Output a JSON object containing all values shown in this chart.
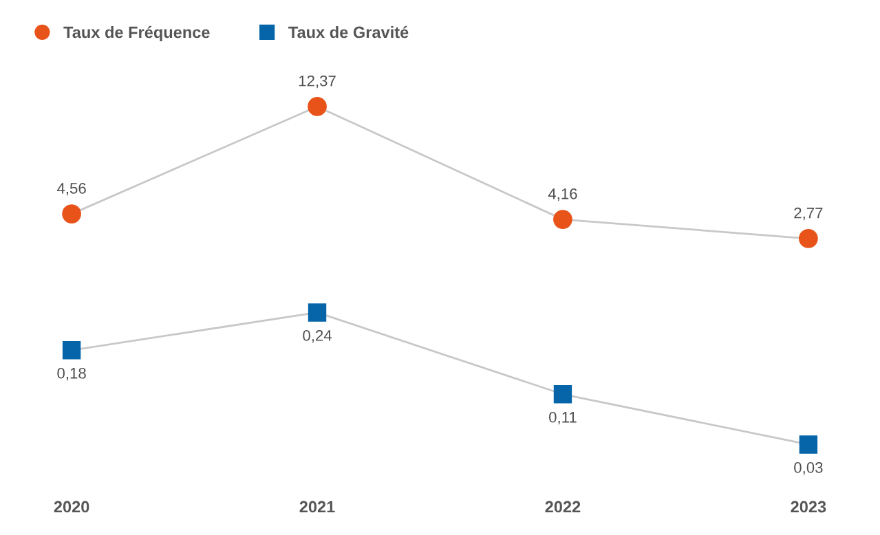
{
  "chart_data": [
    {
      "type": "line",
      "categories": [
        "2020",
        "2021",
        "2022",
        "2023"
      ],
      "series": [
        {
          "name": "Taux de Fréquence",
          "color": "#e8531a",
          "marker": "circle",
          "values": [
            4.56,
            12.37,
            4.16,
            2.77
          ],
          "value_labels": [
            "4,56",
            "12,37",
            "4,16",
            "2,77"
          ]
        }
      ],
      "tick_labels": false,
      "grid": false,
      "legend": "top left"
    },
    {
      "type": "line",
      "categories": [
        "2020",
        "2021",
        "2022",
        "2023"
      ],
      "series": [
        {
          "name": "Taux de Gravité",
          "color": "#0565a8",
          "marker": "square",
          "values": [
            0.18,
            0.24,
            0.11,
            0.03
          ],
          "value_labels": [
            "0,18",
            "0,24",
            "0,11",
            "0,03"
          ]
        }
      ],
      "tick_labels": "x",
      "grid": false,
      "legend": "top left"
    }
  ]
}
